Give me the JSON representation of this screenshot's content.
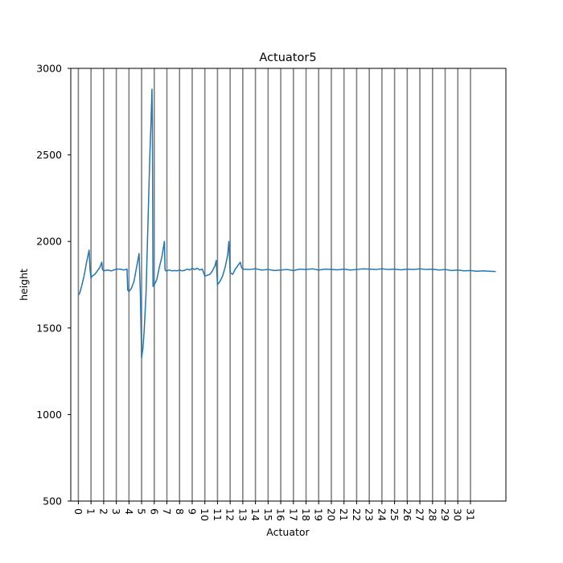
{
  "chart_data": {
    "type": "line",
    "title": "Actuator5",
    "xlabel": "Actuator",
    "ylabel": "height",
    "ylim": [
      500,
      3000
    ],
    "xlim": [
      -0.6,
      33.8
    ],
    "yticks": [
      500,
      1000,
      1500,
      2000,
      2500,
      3000
    ],
    "xticks": [
      0,
      1,
      2,
      3,
      4,
      5,
      6,
      7,
      8,
      9,
      10,
      11,
      12,
      13,
      14,
      15,
      16,
      17,
      18,
      19,
      20,
      21,
      22,
      23,
      24,
      25,
      26,
      27,
      28,
      29,
      30,
      31
    ],
    "xtick_labels": [
      "0",
      "1",
      "2",
      "3",
      "4",
      "5",
      "6",
      "7",
      "8",
      "9",
      "10",
      "11",
      "12",
      "13",
      "14",
      "15",
      "16",
      "17",
      "18",
      "19",
      "20",
      "21",
      "22",
      "23",
      "24",
      "25",
      "26",
      "27",
      "28",
      "29",
      "30",
      "31"
    ],
    "vertical_lines": [
      0,
      1,
      2,
      3,
      4,
      5,
      6,
      7,
      8,
      9,
      10,
      11,
      12,
      13,
      14,
      15,
      16,
      17,
      18,
      19,
      20,
      21,
      22,
      23,
      24,
      25,
      26,
      27,
      28,
      29,
      30,
      31
    ],
    "colors": {
      "series": "#1f77b4",
      "vlines": "#808080"
    },
    "grid": false,
    "series": [
      {
        "x": [
          0,
          0.1,
          0.25,
          0.45,
          0.65,
          0.85,
          0.92,
          1.0,
          1.1,
          1.3,
          1.5,
          1.7,
          1.85,
          1.9,
          2.0,
          2.3,
          2.6,
          3.0,
          3.3,
          3.6,
          3.85,
          3.9,
          4.0,
          4.2,
          4.4,
          4.6,
          4.8,
          4.9,
          5.0,
          5.1,
          5.2,
          5.35,
          5.5,
          5.65,
          5.75,
          5.82,
          5.85,
          5.9,
          6.0,
          6.2,
          6.4,
          6.6,
          6.8,
          6.85,
          6.9,
          7.0,
          7.2,
          7.4,
          7.6,
          7.8,
          8.0,
          8.2,
          8.4,
          8.6,
          8.8,
          9.0,
          9.2,
          9.4,
          9.6,
          9.8,
          9.9,
          10.0,
          10.2,
          10.4,
          10.6,
          10.8,
          10.9,
          11.0,
          11.2,
          11.4,
          11.6,
          11.8,
          11.9,
          12.0,
          12.2,
          12.4,
          12.6,
          12.8,
          12.9,
          13.0,
          13.5,
          14.0,
          14.5,
          15.0,
          15.5,
          16.0,
          16.5,
          17.0,
          17.5,
          18.0,
          18.5,
          19.0,
          19.5,
          20.0,
          20.5,
          21.0,
          21.5,
          22.0,
          22.5,
          23.0,
          23.5,
          24.0,
          24.5,
          25.0,
          25.5,
          26.0,
          26.5,
          27.0,
          27.5,
          28.0,
          28.5,
          29.0,
          29.5,
          30.0,
          30.5,
          31.0,
          31.5,
          32.0,
          32.5,
          33.0
        ],
        "y": [
          1690,
          1700,
          1740,
          1800,
          1880,
          1950,
          1840,
          1790,
          1800,
          1810,
          1830,
          1850,
          1880,
          1840,
          1830,
          1835,
          1830,
          1840,
          1840,
          1835,
          1840,
          1720,
          1710,
          1730,
          1770,
          1850,
          1930,
          1700,
          1330,
          1380,
          1480,
          1700,
          2100,
          2500,
          2700,
          2880,
          2700,
          1740,
          1750,
          1780,
          1850,
          1910,
          2000,
          1840,
          1830,
          1830,
          1835,
          1830,
          1832,
          1830,
          1835,
          1830,
          1833,
          1840,
          1835,
          1845,
          1838,
          1845,
          1835,
          1840,
          1820,
          1800,
          1805,
          1810,
          1830,
          1860,
          1890,
          1750,
          1770,
          1800,
          1850,
          1920,
          2000,
          1820,
          1810,
          1840,
          1860,
          1880,
          1850,
          1840,
          1838,
          1842,
          1835,
          1838,
          1832,
          1835,
          1838,
          1832,
          1840,
          1838,
          1842,
          1835,
          1840,
          1838,
          1836,
          1840,
          1835,
          1838,
          1842,
          1840,
          1838,
          1842,
          1838,
          1840,
          1836,
          1840,
          1838,
          1842,
          1838,
          1840,
          1835,
          1838,
          1832,
          1835,
          1830,
          1832,
          1828,
          1830,
          1828,
          1826
        ]
      }
    ]
  }
}
